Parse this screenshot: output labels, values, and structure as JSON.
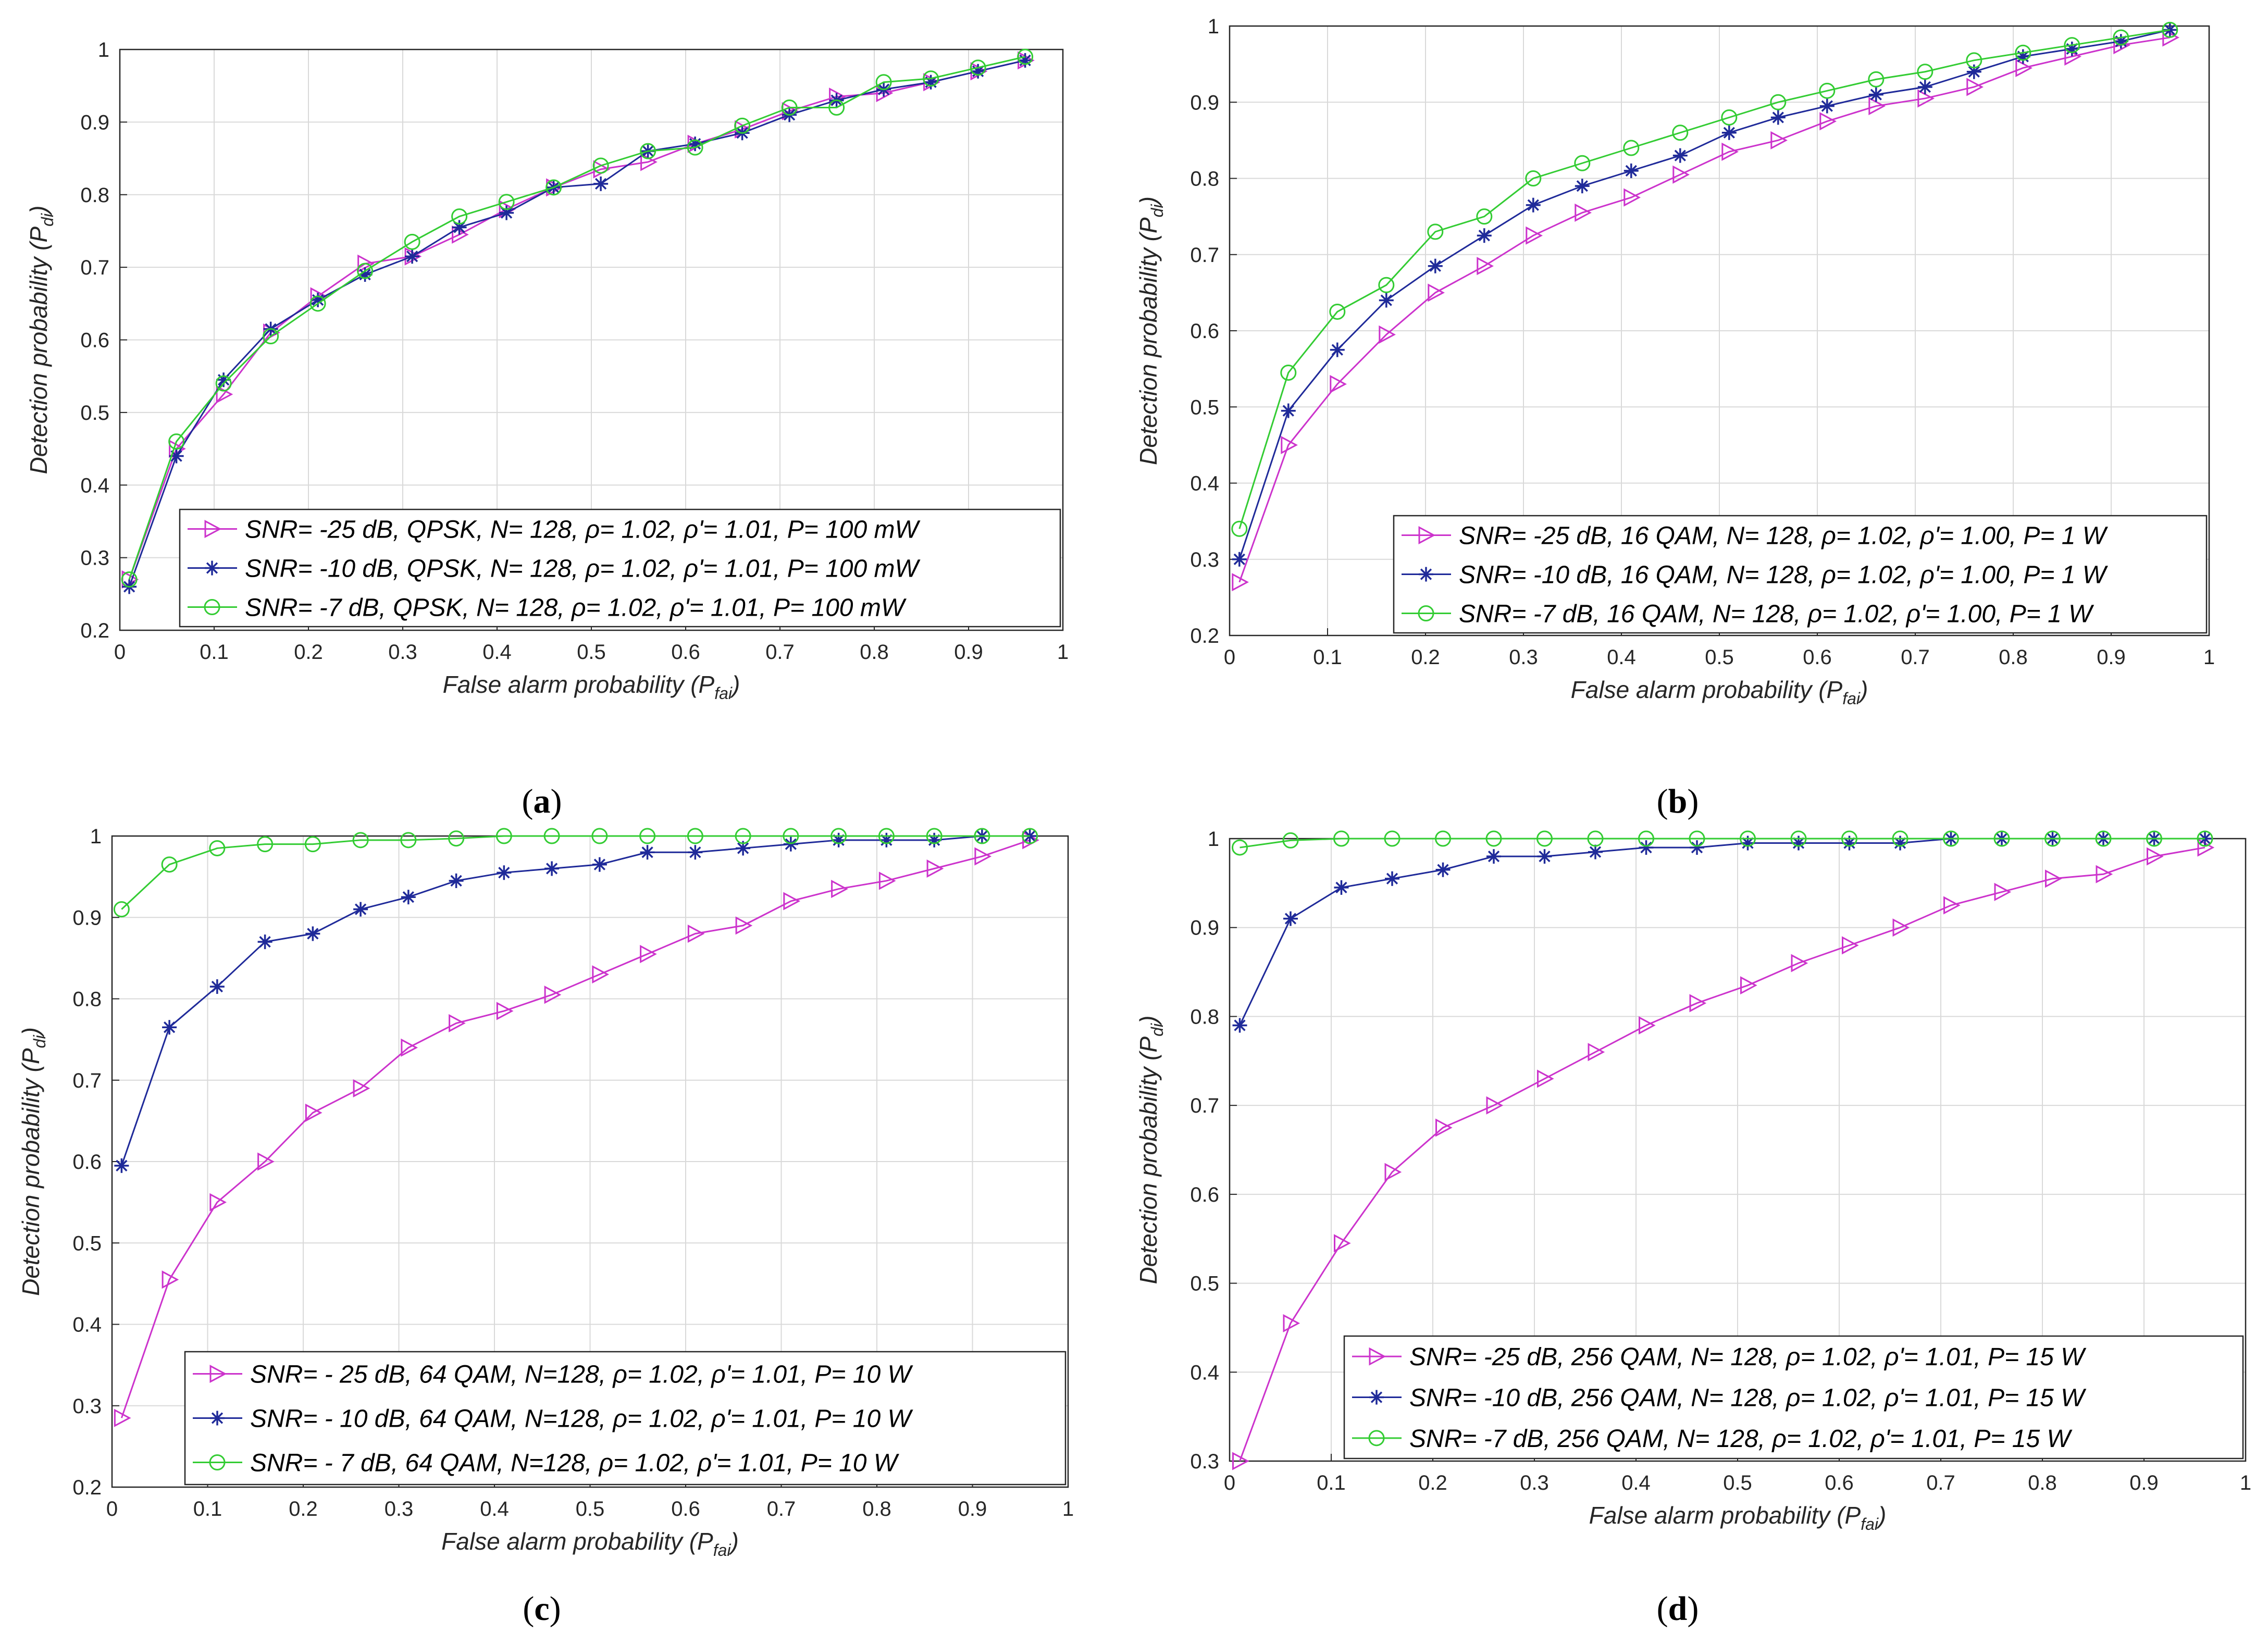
{
  "figure": {
    "colors": {
      "magenta": "#cc33cc",
      "blue": "#1f2a99",
      "green": "#33cc33"
    },
    "marker_names": {
      "triangle": "right-triangle-marker-icon",
      "star": "asterisk-marker-icon",
      "circle": "circle-marker-icon"
    }
  },
  "chart_data": [
    {
      "id": "a",
      "type": "line",
      "caption_open": "(",
      "caption_letter": "a",
      "caption_close": ")",
      "xlabel_main": "False alarm probability (P",
      "xlabel_sub": "fai",
      "xlabel_close": ")",
      "ylabel_main": "Detection probability (P",
      "ylabel_sub": "di",
      "ylabel_close": ")",
      "xlim": [
        0,
        1
      ],
      "ylim": [
        0.2,
        1
      ],
      "grid": true,
      "legend_position": "bottom-right",
      "x_ticks": [
        "0",
        "0.1",
        "0.2",
        "0.3",
        "0.4",
        "0.5",
        "0.6",
        "0.7",
        "0.8",
        "0.9",
        "1"
      ],
      "y_ticks": [
        "0.2",
        "0.3",
        "0.4",
        "0.5",
        "0.6",
        "0.7",
        "0.8",
        "0.9",
        "1"
      ],
      "x": [
        0.01,
        0.06,
        0.11,
        0.16,
        0.21,
        0.26,
        0.31,
        0.36,
        0.41,
        0.46,
        0.51,
        0.56,
        0.61,
        0.66,
        0.71,
        0.76,
        0.81,
        0.86,
        0.91,
        0.96
      ],
      "series": [
        {
          "name": "SNR= -25 dB, QPSK, N= 128, ρ= 1.02, ρ'= 1.01, P= 100 mW",
          "color": "#cc33cc",
          "marker": "triangle",
          "values": [
            0.27,
            0.45,
            0.525,
            0.61,
            0.66,
            0.705,
            0.715,
            0.745,
            0.78,
            0.81,
            0.835,
            0.845,
            0.87,
            0.89,
            0.915,
            0.935,
            0.94,
            0.955,
            0.97,
            0.985
          ]
        },
        {
          "name": "SNR= -10 dB, QPSK, N= 128, ρ= 1.02, ρ'= 1.01, P= 100 mW",
          "color": "#1f2a99",
          "marker": "star",
          "values": [
            0.26,
            0.44,
            0.545,
            0.615,
            0.655,
            0.69,
            0.715,
            0.755,
            0.775,
            0.81,
            0.815,
            0.86,
            0.87,
            0.885,
            0.91,
            0.93,
            0.945,
            0.955,
            0.97,
            0.985
          ]
        },
        {
          "name": "SNR= -7 dB, QPSK, N= 128, ρ= 1.02, ρ'= 1.01, P= 100 mW",
          "color": "#33cc33",
          "marker": "circle",
          "values": [
            0.27,
            0.46,
            0.54,
            0.605,
            0.65,
            0.695,
            0.735,
            0.77,
            0.79,
            0.81,
            0.84,
            0.86,
            0.865,
            0.895,
            0.92,
            0.92,
            0.955,
            0.96,
            0.975,
            0.99
          ]
        }
      ]
    },
    {
      "id": "b",
      "type": "line",
      "caption_open": "(",
      "caption_letter": "b",
      "caption_close": ")",
      "xlabel_main": "False alarm probability (P",
      "xlabel_sub": "fai",
      "xlabel_close": ")",
      "ylabel_main": "Detection probability (P",
      "ylabel_sub": "di",
      "ylabel_close": ")",
      "xlim": [
        0,
        1
      ],
      "ylim": [
        0.2,
        1
      ],
      "grid": true,
      "legend_position": "bottom-right",
      "x_ticks": [
        "0",
        "0.1",
        "0.2",
        "0.3",
        "0.4",
        "0.5",
        "0.6",
        "0.7",
        "0.8",
        "0.9",
        "1"
      ],
      "y_ticks": [
        "0.2",
        "0.3",
        "0.4",
        "0.5",
        "0.6",
        "0.7",
        "0.8",
        "0.9",
        "1"
      ],
      "x": [
        0.01,
        0.06,
        0.11,
        0.16,
        0.21,
        0.26,
        0.31,
        0.36,
        0.41,
        0.46,
        0.51,
        0.56,
        0.61,
        0.66,
        0.71,
        0.76,
        0.81,
        0.86,
        0.91,
        0.96
      ],
      "series": [
        {
          "name": "SNR= -25 dB, 16 QAM, N= 128, ρ= 1.02, ρ'= 1.00, P= 1 W",
          "color": "#cc33cc",
          "marker": "triangle",
          "values": [
            0.27,
            0.45,
            0.53,
            0.595,
            0.65,
            0.685,
            0.725,
            0.755,
            0.775,
            0.805,
            0.835,
            0.85,
            0.875,
            0.895,
            0.905,
            0.92,
            0.945,
            0.96,
            0.975,
            0.985
          ]
        },
        {
          "name": "SNR= -10 dB, 16 QAM, N= 128, ρ= 1.02, ρ'= 1.00, P= 1 W",
          "color": "#1f2a99",
          "marker": "star",
          "values": [
            0.3,
            0.495,
            0.575,
            0.64,
            0.685,
            0.725,
            0.765,
            0.79,
            0.81,
            0.83,
            0.86,
            0.88,
            0.895,
            0.91,
            0.92,
            0.94,
            0.96,
            0.97,
            0.98,
            0.995
          ]
        },
        {
          "name": "SNR= -7 dB, 16 QAM, N= 128, ρ= 1.02, ρ'= 1.00, P= 1 W",
          "color": "#33cc33",
          "marker": "circle",
          "values": [
            0.34,
            0.545,
            0.625,
            0.66,
            0.73,
            0.75,
            0.8,
            0.82,
            0.84,
            0.86,
            0.88,
            0.9,
            0.915,
            0.93,
            0.94,
            0.955,
            0.965,
            0.975,
            0.985,
            0.995
          ]
        }
      ]
    },
    {
      "id": "c",
      "type": "line",
      "caption_open": "(",
      "caption_letter": "c",
      "caption_close": ")",
      "xlabel_main": "False alarm probability (P",
      "xlabel_sub": "fai",
      "xlabel_close": ")",
      "ylabel_main": "Detection probability (P",
      "ylabel_sub": "di",
      "ylabel_close": ")",
      "xlim": [
        0,
        1
      ],
      "ylim": [
        0.2,
        1
      ],
      "grid": true,
      "legend_position": "bottom-right",
      "x_ticks": [
        "0",
        "0.1",
        "0.2",
        "0.3",
        "0.4",
        "0.5",
        "0.6",
        "0.7",
        "0.8",
        "0.9",
        "1"
      ],
      "y_ticks": [
        "0.2",
        "0.3",
        "0.4",
        "0.5",
        "0.6",
        "0.7",
        "0.8",
        "0.9",
        "1"
      ],
      "x": [
        0.01,
        0.06,
        0.11,
        0.16,
        0.21,
        0.26,
        0.31,
        0.36,
        0.41,
        0.46,
        0.51,
        0.56,
        0.61,
        0.66,
        0.71,
        0.76,
        0.81,
        0.86,
        0.91,
        0.96
      ],
      "series": [
        {
          "name": "SNR= - 25 dB, 64 QAM, N=128, ρ= 1.02, ρ'= 1.01, P= 10 W",
          "color": "#cc33cc",
          "marker": "triangle",
          "values": [
            0.285,
            0.455,
            0.55,
            0.6,
            0.66,
            0.69,
            0.74,
            0.77,
            0.785,
            0.805,
            0.83,
            0.855,
            0.88,
            0.89,
            0.92,
            0.935,
            0.945,
            0.96,
            0.975,
            0.995
          ]
        },
        {
          "name": "SNR= - 10 dB, 64 QAM, N=128, ρ= 1.02, ρ'= 1.01, P= 10 W",
          "color": "#1f2a99",
          "marker": "star",
          "values": [
            0.595,
            0.765,
            0.815,
            0.87,
            0.88,
            0.91,
            0.925,
            0.945,
            0.955,
            0.96,
            0.965,
            0.98,
            0.98,
            0.985,
            0.99,
            0.995,
            0.995,
            0.995,
            1.0,
            1.0
          ]
        },
        {
          "name": "SNR= - 7 dB, 64 QAM, N=128, ρ= 1.02, ρ'= 1.01, P= 10 W",
          "color": "#33cc33",
          "marker": "circle",
          "values": [
            0.91,
            0.965,
            0.985,
            0.99,
            0.99,
            0.995,
            0.995,
            0.997,
            1.0,
            1.0,
            1.0,
            1.0,
            1.0,
            1.0,
            1.0,
            1.0,
            1.0,
            1.0,
            1.0,
            1.0
          ]
        }
      ]
    },
    {
      "id": "d",
      "type": "line",
      "caption_open": "(",
      "caption_letter": "d",
      "caption_close": ")",
      "xlabel_main": "False alarm probability (P",
      "xlabel_sub": "fai",
      "xlabel_close": ")",
      "ylabel_main": "Detection probability (P",
      "ylabel_sub": "di",
      "ylabel_close": ")",
      "xlim": [
        0,
        1
      ],
      "ylim": [
        0.3,
        1
      ],
      "grid": true,
      "legend_position": "bottom-right",
      "x_ticks": [
        "0",
        "0.1",
        "0.2",
        "0.3",
        "0.4",
        "0.5",
        "0.6",
        "0.7",
        "0.8",
        "0.9",
        "1"
      ],
      "y_ticks": [
        "0.3",
        "0.4",
        "0.5",
        "0.6",
        "0.7",
        "0.8",
        "0.9",
        "1"
      ],
      "x": [
        0.01,
        0.06,
        0.11,
        0.16,
        0.21,
        0.26,
        0.31,
        0.36,
        0.41,
        0.46,
        0.51,
        0.56,
        0.61,
        0.66,
        0.71,
        0.76,
        0.81,
        0.86,
        0.91,
        0.96
      ],
      "series": [
        {
          "name": "SNR= -25 dB, 256 QAM, N= 128, ρ= 1.02, ρ'= 1.01, P= 15 W",
          "color": "#cc33cc",
          "marker": "triangle",
          "values": [
            0.3,
            0.455,
            0.545,
            0.625,
            0.675,
            0.7,
            0.73,
            0.76,
            0.79,
            0.815,
            0.835,
            0.86,
            0.88,
            0.9,
            0.925,
            0.94,
            0.955,
            0.96,
            0.98,
            0.99
          ]
        },
        {
          "name": "SNR= -10 dB, 256 QAM, N= 128, ρ= 1.02, ρ'= 1.01, P= 15 W",
          "color": "#1f2a99",
          "marker": "star",
          "values": [
            0.79,
            0.91,
            0.945,
            0.955,
            0.965,
            0.98,
            0.98,
            0.985,
            0.99,
            0.99,
            0.995,
            0.995,
            0.995,
            0.995,
            1.0,
            1.0,
            1.0,
            1.0,
            1.0,
            1.0
          ]
        },
        {
          "name": "SNR= -7 dB, 256 QAM, N= 128, ρ= 1.02, ρ'= 1.01, P= 15 W",
          "color": "#33cc33",
          "marker": "circle",
          "values": [
            0.99,
            0.998,
            1.0,
            1.0,
            1.0,
            1.0,
            1.0,
            1.0,
            1.0,
            1.0,
            1.0,
            1.0,
            1.0,
            1.0,
            1.0,
            1.0,
            1.0,
            1.0,
            1.0,
            1.0
          ]
        }
      ]
    }
  ]
}
